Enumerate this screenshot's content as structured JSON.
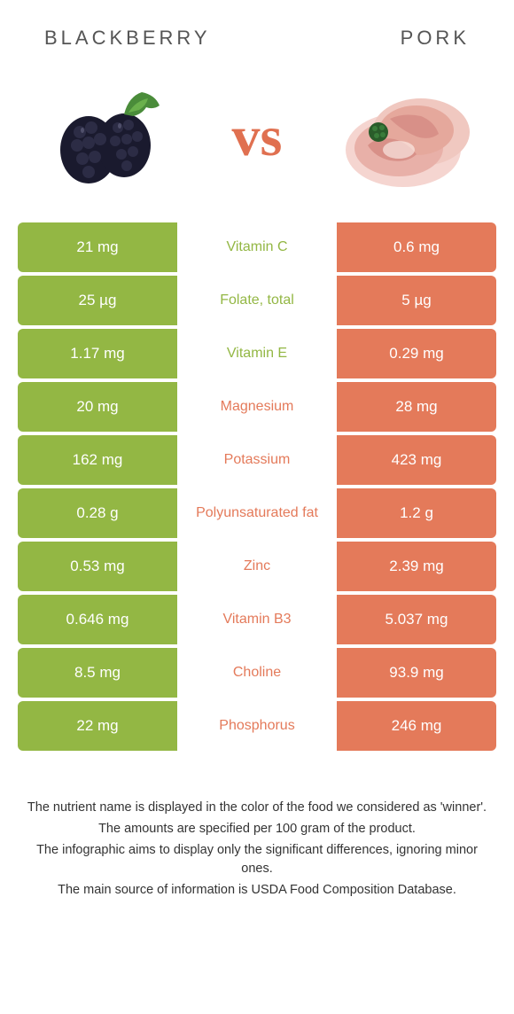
{
  "header": {
    "left_title": "BLACKBERRY",
    "right_title": "PORK"
  },
  "vs_label": "vs",
  "colors": {
    "left_bg": "#93b744",
    "right_bg": "#e47a5a",
    "left_text": "#93b744",
    "right_text": "#e47a5a",
    "background": "#ffffff"
  },
  "rows": [
    {
      "left": "21 mg",
      "label": "Vitamin C",
      "right": "0.6 mg",
      "winner": "left"
    },
    {
      "left": "25 µg",
      "label": "Folate, total",
      "right": "5 µg",
      "winner": "left"
    },
    {
      "left": "1.17 mg",
      "label": "Vitamin E",
      "right": "0.29 mg",
      "winner": "left"
    },
    {
      "left": "20 mg",
      "label": "Magnesium",
      "right": "28 mg",
      "winner": "right"
    },
    {
      "left": "162 mg",
      "label": "Potassium",
      "right": "423 mg",
      "winner": "right"
    },
    {
      "left": "0.28 g",
      "label": "Polyunsaturated fat",
      "right": "1.2 g",
      "winner": "right"
    },
    {
      "left": "0.53 mg",
      "label": "Zinc",
      "right": "2.39 mg",
      "winner": "right"
    },
    {
      "left": "0.646 mg",
      "label": "Vitamin B3",
      "right": "5.037 mg",
      "winner": "right"
    },
    {
      "left": "8.5 mg",
      "label": "Choline",
      "right": "93.9 mg",
      "winner": "right"
    },
    {
      "left": "22 mg",
      "label": "Phosphorus",
      "right": "246 mg",
      "winner": "right"
    }
  ],
  "footer": {
    "line1": "The nutrient name is displayed in the color of the food we considered as 'winner'.",
    "line2": "The amounts are specified per 100 gram of the product.",
    "line3": "The infographic aims to display only the significant differences, ignoring minor ones.",
    "line4": "The main source of information is USDA Food Composition Database."
  }
}
